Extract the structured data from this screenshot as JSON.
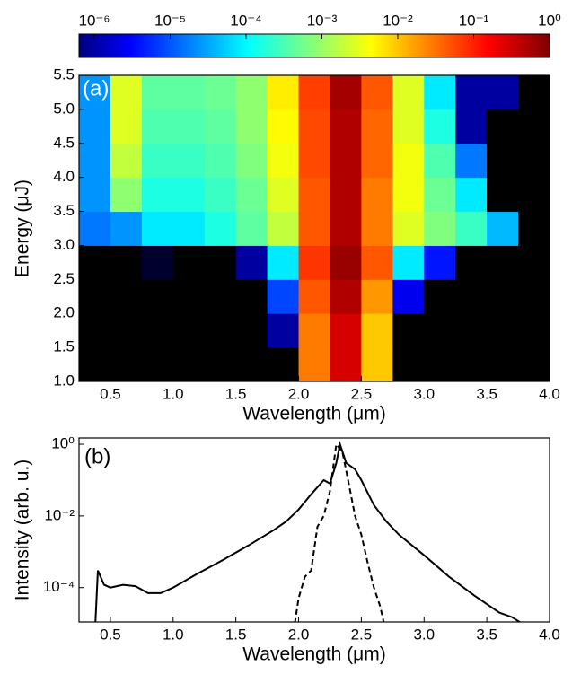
{
  "chart_data": [
    {
      "type": "heatmap",
      "ylabel": "Energy (μJ)",
      "xlabel": "Wavelength (μm)",
      "annotation": "(a)",
      "colormap": "jet",
      "x": [
        0.375,
        0.625,
        0.875,
        1.125,
        1.375,
        1.625,
        1.875,
        2.125,
        2.375,
        2.625,
        2.875,
        3.125,
        3.375,
        3.625,
        3.875
      ],
      "y": [
        1.25,
        1.75,
        2.25,
        2.75,
        3.25,
        3.75,
        4.25,
        4.75,
        5.25
      ],
      "values": [
        [
          1e-07,
          1e-07,
          1e-07,
          1e-07,
          1e-07,
          1e-07,
          1e-07,
          0.03,
          0.3,
          0.01,
          1e-07,
          1e-07,
          1e-07,
          1e-07,
          1e-07
        ],
        [
          1e-07,
          1e-07,
          1e-07,
          1e-07,
          1e-07,
          1e-07,
          1e-06,
          0.03,
          0.3,
          0.01,
          1e-07,
          1e-07,
          1e-07,
          1e-07,
          1e-07
        ],
        [
          1e-07,
          1e-07,
          1e-07,
          1e-07,
          1e-07,
          1e-07,
          1e-05,
          0.05,
          0.5,
          0.02,
          3e-06,
          1e-07,
          1e-07,
          1e-07,
          1e-07
        ],
        [
          1e-07,
          1e-07,
          2e-07,
          1e-07,
          1e-07,
          1e-06,
          0.0001,
          0.08,
          0.7,
          0.05,
          0.0001,
          5e-06,
          1e-07,
          1e-07,
          1e-07
        ],
        [
          2e-05,
          3e-05,
          0.0001,
          0.0001,
          0.0002,
          0.0005,
          0.002,
          0.05,
          0.5,
          0.03,
          0.003,
          0.0008,
          0.0003,
          5e-05,
          1e-07
        ],
        [
          3e-05,
          0.001,
          0.0002,
          0.0002,
          0.0003,
          0.0006,
          0.003,
          0.05,
          0.5,
          0.03,
          0.004,
          0.0006,
          0.0001,
          1e-07,
          1e-07
        ],
        [
          3e-05,
          0.002,
          0.0003,
          0.0003,
          0.0004,
          0.0008,
          0.004,
          0.06,
          0.5,
          0.04,
          0.004,
          0.0004,
          2e-05,
          1e-07,
          1e-07
        ],
        [
          3e-05,
          0.003,
          0.0004,
          0.0004,
          0.0005,
          0.001,
          0.005,
          0.06,
          0.5,
          0.04,
          0.003,
          0.0002,
          1e-06,
          1e-07,
          1e-07
        ],
        [
          3e-05,
          0.003,
          0.0005,
          0.0005,
          0.0006,
          0.001,
          0.006,
          0.07,
          0.6,
          0.05,
          0.003,
          0.0001,
          1e-06,
          1e-06,
          1e-07
        ]
      ],
      "xlim": [
        0.25,
        4.0
      ],
      "xticks": [
        {
          "value": 0.5,
          "label": "0.5"
        },
        {
          "value": 1,
          "label": "1.0"
        },
        {
          "value": 1.5,
          "label": "1.5"
        },
        {
          "value": 2,
          "label": "2.0"
        },
        {
          "value": 2.5,
          "label": "2.5"
        },
        {
          "value": 3,
          "label": "3.0"
        },
        {
          "value": 3.5,
          "label": "3.5"
        },
        {
          "value": 4,
          "label": "4.0"
        }
      ],
      "ylim": [
        1.0,
        5.5
      ],
      "yticks": [
        {
          "value": 1,
          "label": "1.0"
        },
        {
          "value": 1.5,
          "label": "1.5"
        },
        {
          "value": 2,
          "label": "2.0"
        },
        {
          "value": 2.5,
          "label": "2.5"
        },
        {
          "value": 3,
          "label": "3.0"
        },
        {
          "value": 3.5,
          "label": "3.5"
        },
        {
          "value": 4,
          "label": "4.0"
        },
        {
          "value": 4.5,
          "label": "4.5"
        },
        {
          "value": 5,
          "label": "5.0"
        },
        {
          "value": 5.5,
          "label": "5.5"
        }
      ],
      "colorbar": {
        "log": true,
        "lim": [
          6.3e-07,
          1
        ],
        "ticks": [
          {
            "value": 1e-06,
            "label": "10⁻⁶"
          },
          {
            "value": 1e-05,
            "label": "10⁻⁵"
          },
          {
            "value": 0.0001,
            "label": "10⁻⁴"
          },
          {
            "value": 0.001,
            "label": "10⁻³"
          },
          {
            "value": 0.01,
            "label": "10⁻²"
          },
          {
            "value": 0.1,
            "label": "10⁻¹"
          },
          {
            "value": 1,
            "label": "10⁰"
          }
        ]
      }
    },
    {
      "type": "line",
      "ylabel": "Intensity (arb. u.)",
      "xlabel": "Wavelength (μm)",
      "annotation": "(b)",
      "ylog": true,
      "series": [
        {
          "color": "#000000",
          "dash": false,
          "x": [
            0.38,
            0.4,
            0.45,
            0.5,
            0.6,
            0.7,
            0.8,
            0.9,
            1.0,
            1.2,
            1.4,
            1.6,
            1.8,
            1.9,
            2.0,
            2.1,
            2.2,
            2.25,
            2.3,
            2.33,
            2.38,
            2.45,
            2.5,
            2.6,
            2.7,
            2.8,
            3.0,
            3.2,
            3.4,
            3.6,
            3.7,
            3.78
          ],
          "values": [
            1e-05,
            0.0003,
            0.00012,
            0.0001,
            0.00012,
            0.00011,
            7e-05,
            7e-05,
            0.0001,
            0.00025,
            0.0006,
            0.0015,
            0.004,
            0.007,
            0.015,
            0.04,
            0.1,
            0.08,
            0.3,
            1,
            0.3,
            0.2,
            0.1,
            0.02,
            0.007,
            0.003,
            0.0008,
            0.0002,
            6e-05,
            2e-05,
            1.5e-05,
            1e-05
          ]
        },
        {
          "color": "#000000",
          "dash": true,
          "x": [
            1.97,
            2.0,
            2.05,
            2.1,
            2.15,
            2.2,
            2.25,
            2.3,
            2.35,
            2.4,
            2.45,
            2.5,
            2.55,
            2.6,
            2.65,
            2.68
          ],
          "values": [
            1e-05,
            5e-05,
            0.0002,
            0.0003,
            0.005,
            0.01,
            0.05,
            1,
            0.6,
            0.08,
            0.01,
            0.003,
            0.0005,
            0.0001,
            3e-05,
            1e-05
          ]
        }
      ],
      "xlim": [
        0.25,
        4.0
      ],
      "xticks": [
        {
          "value": 0.5,
          "label": "0.5"
        },
        {
          "value": 1,
          "label": "1.0"
        },
        {
          "value": 1.5,
          "label": "1.5"
        },
        {
          "value": 2,
          "label": "2.0"
        },
        {
          "value": 2.5,
          "label": "2.5"
        },
        {
          "value": 3,
          "label": "3.0"
        },
        {
          "value": 3.5,
          "label": "3.5"
        },
        {
          "value": 4,
          "label": "4.0"
        }
      ],
      "ylim": [
        1.1e-05,
        1.5
      ],
      "yticks": [
        {
          "value": 0.0001,
          "label": "10⁻⁴"
        },
        {
          "value": 0.01,
          "label": "10⁻²"
        },
        {
          "value": 1,
          "label": "10⁰"
        }
      ]
    }
  ]
}
